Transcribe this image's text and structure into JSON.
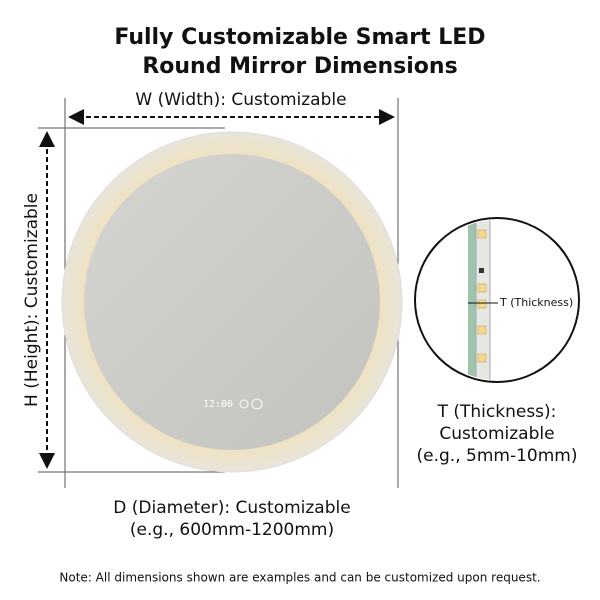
{
  "header": {
    "title_line1": "Fully Customizable Smart LED",
    "title_line2": "Round Mirror Dimensions"
  },
  "dimensions": {
    "width": "W (Width): Customizable",
    "height": "H (Height): Customizable",
    "diameter_line1": "D (Diameter): Customizable",
    "diameter_line2": "(e.g., 600mm-1200mm)",
    "thickness_tag": "T (Thickness)",
    "thickness_line1": "T (Thickness):",
    "thickness_line2": "Customizable",
    "thickness_line3": "(e.g., 5mm-10mm)"
  },
  "mirror": {
    "display": "12:00"
  },
  "footer": {
    "note": "Note: All dimensions shown are examples and can be customized upon request."
  }
}
